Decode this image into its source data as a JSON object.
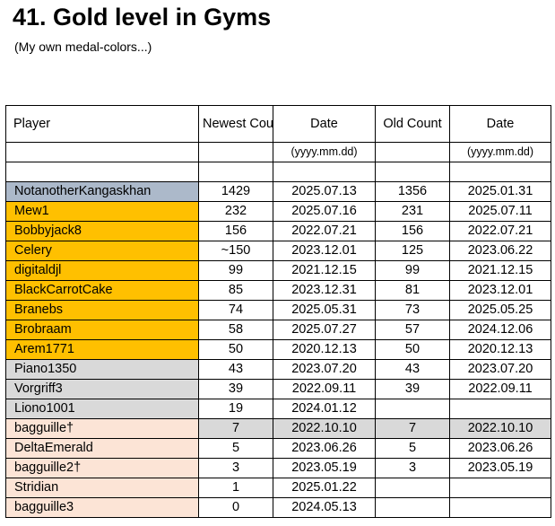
{
  "title": "41. Gold level in Gyms",
  "subtitle": "(My own medal-colors...)",
  "colors": {
    "blue": "#acb9ca",
    "gold": "#ffc000",
    "silver": "#d9d9d9",
    "bronze": "#fce4d6"
  },
  "table": {
    "headers": {
      "player": "Player",
      "newest_count": "Newest Count",
      "newest_date": "Date",
      "old_count": "Old Count",
      "old_date": "Date"
    },
    "date_format_newest": "(yyyy.mm.dd)",
    "date_format_old": "(yyyy.mm.dd)",
    "rows": [
      {
        "player": "NotanotherKangaskhan",
        "newest_count": "1429",
        "newest_date": "2025.07.13",
        "old_count": "1356",
        "old_date": "2025.01.31",
        "player_color": "blue"
      },
      {
        "player": "Mew1",
        "newest_count": "232",
        "newest_date": "2025.07.16",
        "old_count": "231",
        "old_date": "2025.07.11",
        "player_color": "gold"
      },
      {
        "player": "Bobbyjack8",
        "newest_count": "156",
        "newest_date": "2022.07.21",
        "old_count": "156",
        "old_date": "2022.07.21",
        "player_color": "gold"
      },
      {
        "player": "Celery",
        "newest_count": "~150",
        "newest_date": "2023.12.01",
        "old_count": "125",
        "old_date": "2023.06.22",
        "player_color": "gold"
      },
      {
        "player": "digitaldjl",
        "newest_count": "99",
        "newest_date": "2021.12.15",
        "old_count": "99",
        "old_date": "2021.12.15",
        "player_color": "gold"
      },
      {
        "player": "BlackCarrotCake",
        "newest_count": "85",
        "newest_date": "2023.12.31",
        "old_count": "81",
        "old_date": "2023.12.01",
        "player_color": "gold"
      },
      {
        "player": "Branebs",
        "newest_count": "74",
        "newest_date": "2025.05.31",
        "old_count": "73",
        "old_date": "2025.05.25",
        "player_color": "gold"
      },
      {
        "player": "Brobraam",
        "newest_count": "58",
        "newest_date": "2025.07.27",
        "old_count": "57",
        "old_date": "2024.12.06",
        "player_color": "gold"
      },
      {
        "player": "Arem1771",
        "newest_count": "50",
        "newest_date": "2020.12.13",
        "old_count": "50",
        "old_date": "2020.12.13",
        "player_color": "gold"
      },
      {
        "player": "Piano1350",
        "newest_count": "43",
        "newest_date": "2023.07.20",
        "old_count": "43",
        "old_date": "2023.07.20",
        "player_color": "silver"
      },
      {
        "player": "Vorgriff3",
        "newest_count": "39",
        "newest_date": "2022.09.11",
        "old_count": "39",
        "old_date": "2022.09.11",
        "player_color": "silver"
      },
      {
        "player": "Liono1001",
        "newest_count": "19",
        "newest_date": "2024.01.12",
        "old_count": "",
        "old_date": "",
        "player_color": "silver"
      },
      {
        "player": "bagguille†",
        "newest_count": "7",
        "newest_date": "2022.10.10",
        "old_count": "7",
        "old_date": "2022.10.10",
        "player_color": "bronze",
        "data_color": "silver"
      },
      {
        "player": "DeltaEmerald",
        "newest_count": "5",
        "newest_date": "2023.06.26",
        "old_count": "5",
        "old_date": "2023.06.26",
        "player_color": "bronze"
      },
      {
        "player": "bagguille2†",
        "newest_count": "3",
        "newest_date": "2023.05.19",
        "old_count": "3",
        "old_date": "2023.05.19",
        "player_color": "bronze"
      },
      {
        "player": "Stridian",
        "newest_count": "1",
        "newest_date": "2025.01.22",
        "old_count": "",
        "old_date": "",
        "player_color": "bronze"
      },
      {
        "player": "bagguille3",
        "newest_count": "0",
        "newest_date": "2024.05.13",
        "old_count": "",
        "old_date": "",
        "player_color": "bronze"
      }
    ]
  }
}
